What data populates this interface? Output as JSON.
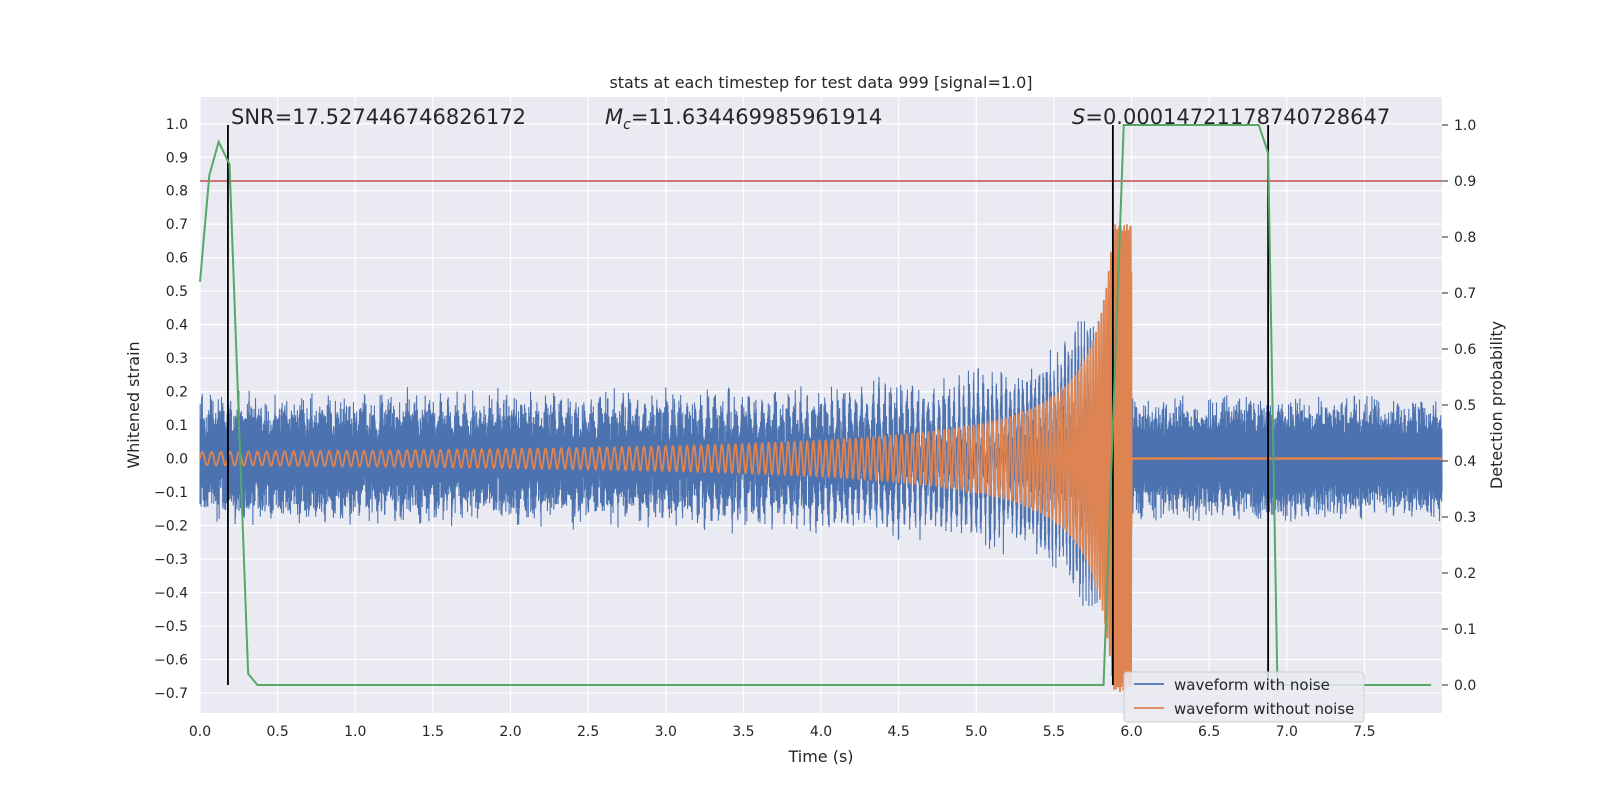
{
  "chart_data": {
    "type": "line",
    "title": "stats at each timestep for test data 999 [signal=1.0]",
    "xlabel": "Time (s)",
    "ylabel": "Whitened strain",
    "ylabel_right": "Detection probability",
    "xlim": [
      0.0,
      8.0
    ],
    "ylim": [
      -0.76,
      1.08
    ],
    "ylim_right": [
      -0.05,
      1.05
    ],
    "xticks": [
      0.0,
      0.5,
      1.0,
      1.5,
      2.0,
      2.5,
      3.0,
      3.5,
      4.0,
      4.5,
      5.0,
      5.5,
      6.0,
      6.5,
      7.0,
      7.5
    ],
    "xtick_labels": [
      "0.0",
      "0.5",
      "1.0",
      "1.5",
      "2.0",
      "2.5",
      "3.0",
      "3.5",
      "4.0",
      "4.5",
      "5.0",
      "5.5",
      "6.0",
      "6.5",
      "7.0",
      "7.5"
    ],
    "yticks": [
      1.0,
      0.9,
      0.8,
      0.7,
      0.6,
      0.5,
      0.4,
      0.3,
      0.2,
      0.1,
      0.0,
      -0.1,
      -0.2,
      -0.3,
      -0.4,
      -0.5,
      -0.6,
      -0.7
    ],
    "ytick_labels": [
      "1.0",
      "0.9",
      "0.8",
      "0.7",
      "0.6",
      "0.5",
      "0.4",
      "0.3",
      "0.2",
      "0.1",
      "0.0",
      "−0.1",
      "−0.2",
      "−0.3",
      "−0.4",
      "−0.5",
      "−0.6",
      "−0.7"
    ],
    "yticks_right": [
      1.0,
      0.9,
      0.8,
      0.7,
      0.6,
      0.5,
      0.4,
      0.3,
      0.2,
      0.1,
      0.0
    ],
    "ytick_labels_right": [
      "1.0",
      "0.9",
      "0.8",
      "0.7",
      "0.6",
      "0.5",
      "0.4",
      "0.3",
      "0.2",
      "0.1",
      "0.0"
    ],
    "annotations": {
      "snr": "SNR=17.527446746826172",
      "mc_symbol": "M",
      "mc_sub": "c",
      "mc_value": "=11.634469985961914",
      "s_symbol": "S",
      "s_value": "=0.00014721178740728647"
    },
    "series": [
      {
        "name": "waveform with noise",
        "color": "#4c72b0",
        "noise_amplitude": 0.155,
        "merger_time": 6.0,
        "peak_positive": 0.41,
        "peak_negative": -0.44
      },
      {
        "name": "waveform without noise",
        "color": "#dd8452",
        "start_amplitude": 0.02,
        "peak_amplitude": 0.7,
        "merger_time": 6.0,
        "start_period": 0.06
      },
      {
        "name": "detection probability",
        "color": "#55a868",
        "axis": "right",
        "x": [
          0.0,
          0.06,
          0.12,
          0.19,
          0.31,
          0.37,
          5.82,
          5.95,
          6.82,
          6.88,
          6.94,
          7.93
        ],
        "y": [
          0.72,
          0.91,
          0.97,
          0.93,
          0.02,
          0.0,
          0.0,
          1.0,
          1.0,
          0.95,
          0.0,
          0.0
        ]
      }
    ],
    "threshold": {
      "axis": "right",
      "value": 0.9,
      "color": "#c44e52"
    },
    "detection_lines": {
      "color": "#000000",
      "x": [
        0.18,
        5.88,
        6.88
      ]
    },
    "legend": {
      "location": "lower-right",
      "entries": [
        "waveform with noise",
        "waveform without noise"
      ]
    }
  }
}
